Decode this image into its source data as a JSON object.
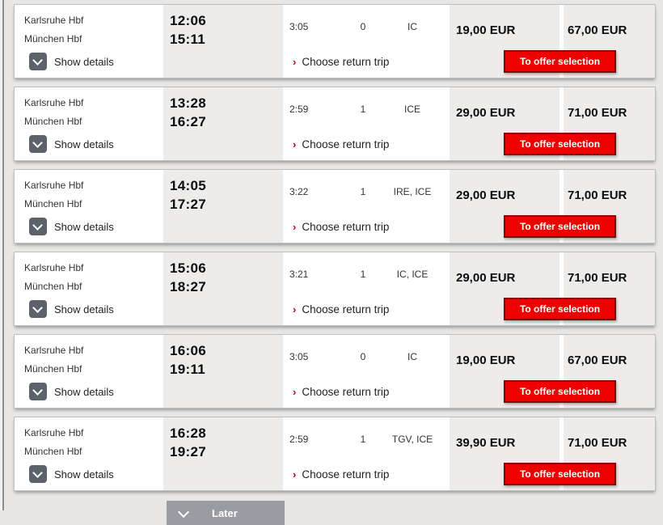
{
  "colors": {
    "page_bg": "#e8e7e5",
    "column_gray": "#edecea",
    "db_red": "#ee0000",
    "db_red_border": "#8f0000",
    "later_gray": "#9b9ca2",
    "chevron_red": "#c00016",
    "details_box_gray": "#5b626b"
  },
  "labels": {
    "show_details": "Show details",
    "choose_return": "Choose return trip",
    "to_offer": "To offer selection",
    "later": "Later"
  },
  "icons": {
    "chevron_right": "›",
    "chevron_down": "∨"
  },
  "connections": [
    {
      "from": "Karlsruhe Hbf",
      "to": "München Hbf",
      "dep": "12:06",
      "arr": "15:11",
      "duration": "3:05",
      "changes": "0",
      "products": "IC",
      "price_left": "19,00 EUR",
      "price_right": "67,00 EUR"
    },
    {
      "from": "Karlsruhe Hbf",
      "to": "München Hbf",
      "dep": "13:28",
      "arr": "16:27",
      "duration": "2:59",
      "changes": "1",
      "products": "ICE",
      "price_left": "29,00 EUR",
      "price_right": "71,00 EUR"
    },
    {
      "from": "Karlsruhe Hbf",
      "to": "München Hbf",
      "dep": "14:05",
      "arr": "17:27",
      "duration": "3:22",
      "changes": "1",
      "products": "IRE, ICE",
      "price_left": "29,00 EUR",
      "price_right": "71,00 EUR"
    },
    {
      "from": "Karlsruhe Hbf",
      "to": "München Hbf",
      "dep": "15:06",
      "arr": "18:27",
      "duration": "3:21",
      "changes": "1",
      "products": "IC, ICE",
      "price_left": "29,00 EUR",
      "price_right": "71,00 EUR"
    },
    {
      "from": "Karlsruhe Hbf",
      "to": "München Hbf",
      "dep": "16:06",
      "arr": "19:11",
      "duration": "3:05",
      "changes": "0",
      "products": "IC",
      "price_left": "19,00 EUR",
      "price_right": "67,00 EUR"
    },
    {
      "from": "Karlsruhe Hbf",
      "to": "München Hbf",
      "dep": "16:28",
      "arr": "19:27",
      "duration": "2:59",
      "changes": "1",
      "products": "TGV, ICE",
      "price_left": "39,90 EUR",
      "price_right": "71,00 EUR"
    }
  ]
}
